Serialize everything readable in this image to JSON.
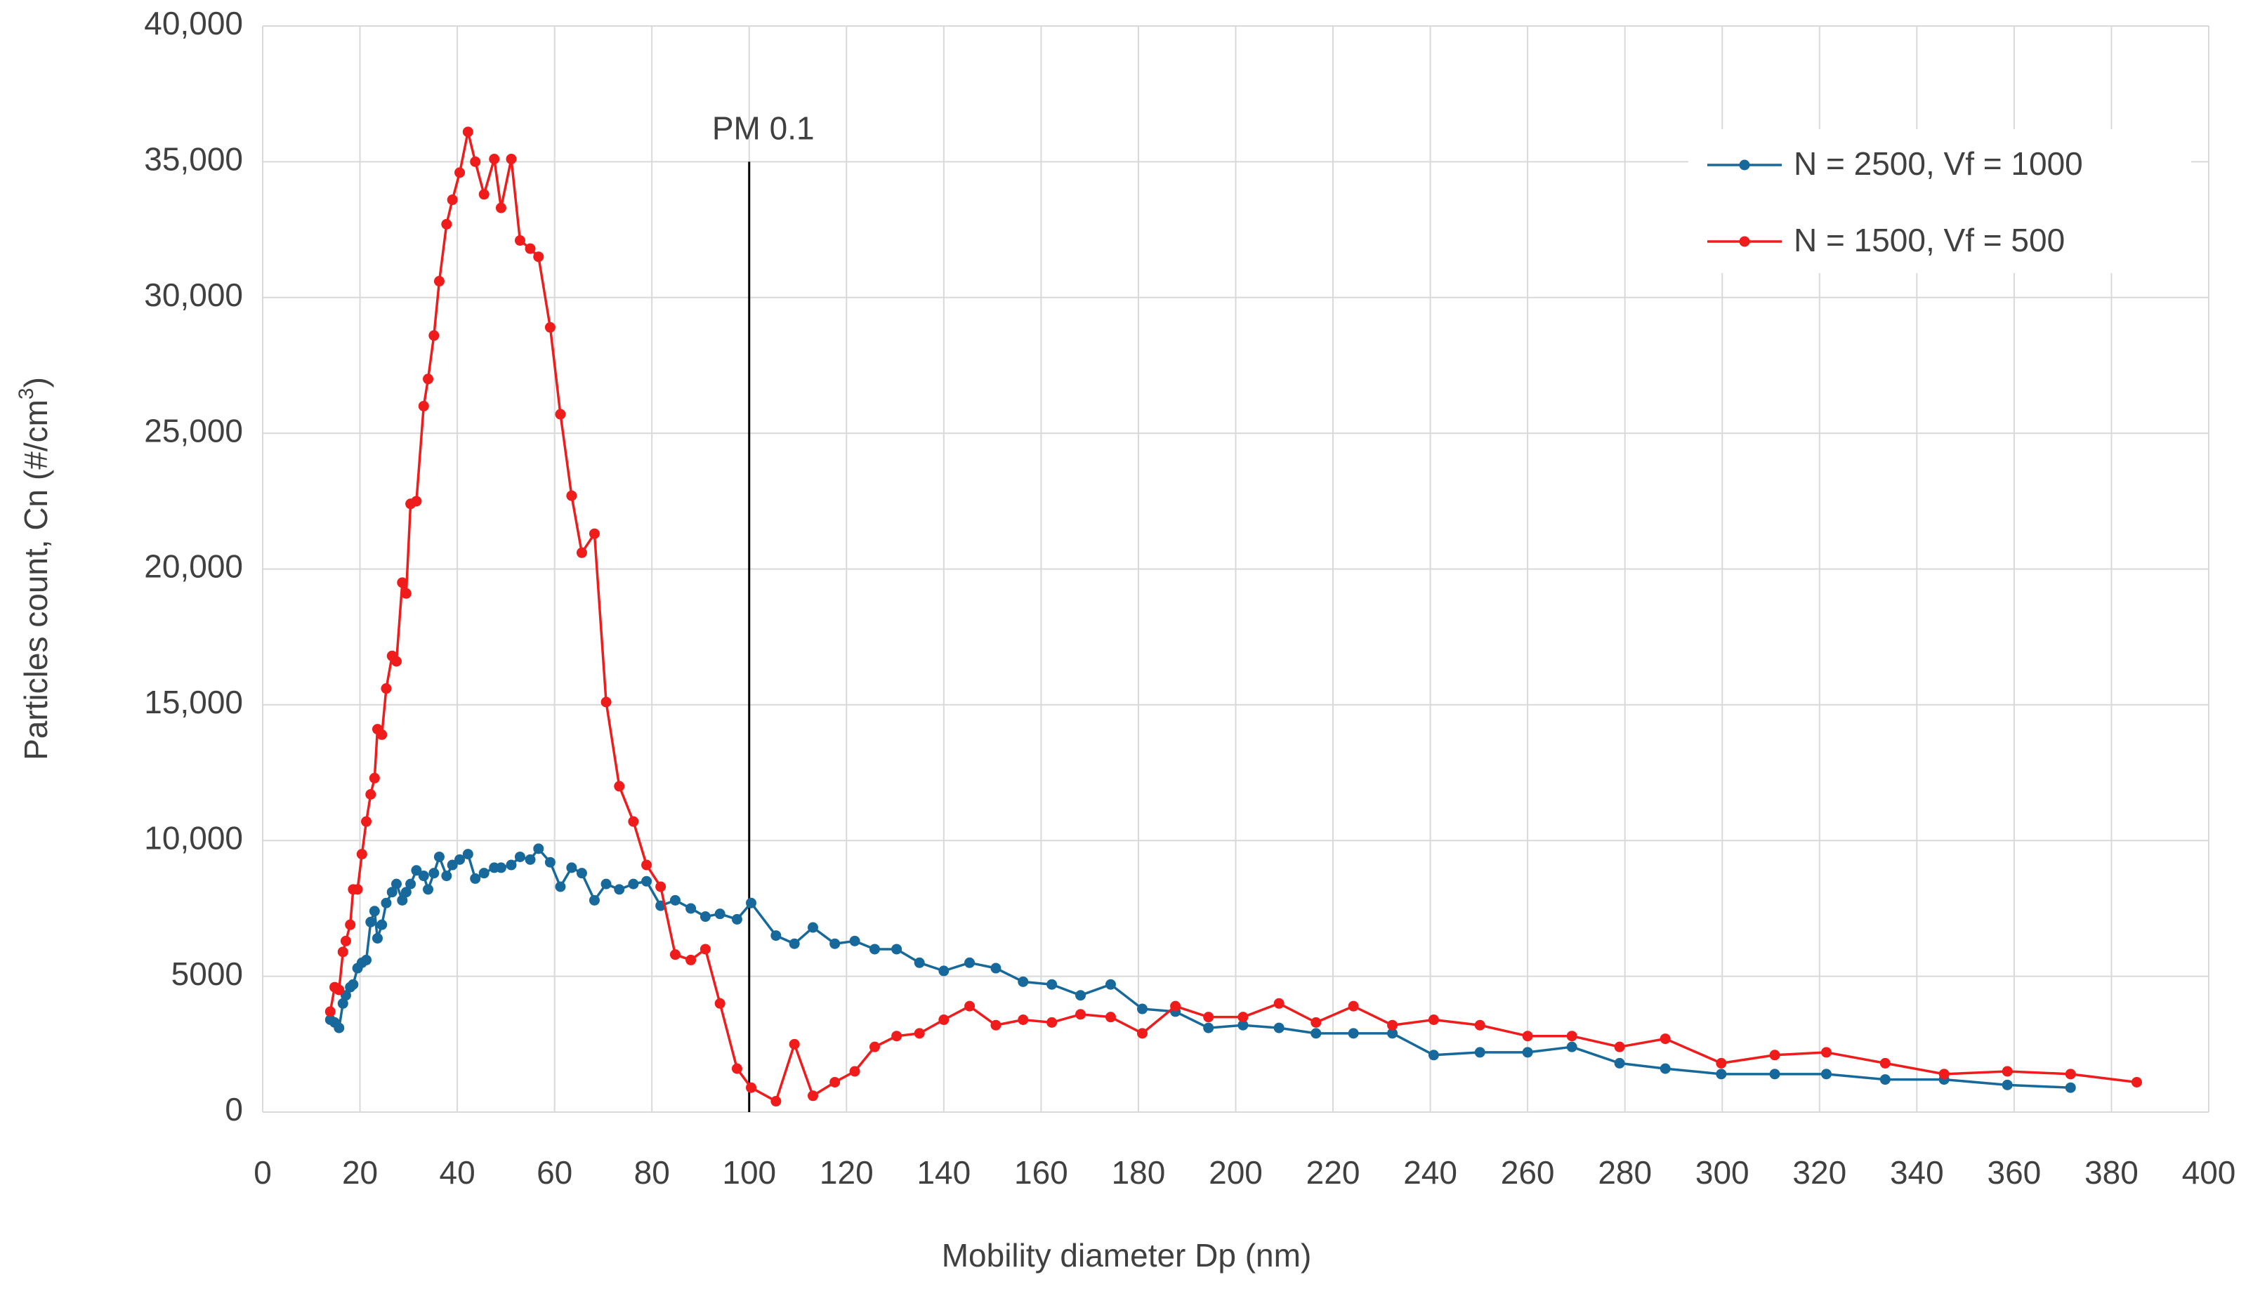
{
  "chart_data": {
    "type": "line",
    "x_label": "Mobility diameter Dp (nm)",
    "y_label_parts": [
      "Particles count, Cn (#/cm",
      "3",
      ")"
    ],
    "xlim": [
      0,
      400
    ],
    "xticks": [
      0,
      20,
      40,
      60,
      80,
      100,
      120,
      140,
      160,
      180,
      200,
      220,
      240,
      260,
      280,
      300,
      320,
      340,
      360,
      380,
      400
    ],
    "ylim": [
      0,
      40000
    ],
    "yticks": [
      0,
      5000,
      {
        "value": 10000,
        "label": "10,000"
      },
      {
        "value": 15000,
        "label": "15,000"
      },
      {
        "value": 20000,
        "label": "20,000"
      },
      {
        "value": 25000,
        "label": "25,000"
      },
      {
        "value": 30000,
        "label": "30,000"
      },
      {
        "value": 35000,
        "label": "35,000"
      },
      {
        "value": 40000,
        "label": "40,000"
      }
    ],
    "grid": true,
    "legend": "upper right",
    "annotations": [
      {
        "text": "PM 0.1",
        "x": 100,
        "y_top": 35000
      }
    ],
    "series": [
      {
        "name": "N = 2500, Vf = 1000",
        "color": "#16699a",
        "x": [
          13.9,
          14.8,
          15.7,
          16.5,
          17.1,
          18,
          18.6,
          19.5,
          20.4,
          21.3,
          22.2,
          23,
          23.6,
          24.5,
          25.4,
          26.6,
          27.5,
          28.7,
          29.5,
          30.4,
          31.6,
          33.1,
          34,
          35.2,
          36.3,
          37.8,
          39,
          40.5,
          42.2,
          43.7,
          45.5,
          47.6,
          49,
          51.1,
          52.9,
          55,
          56.7,
          59.1,
          61.2,
          63.5,
          65.6,
          68.2,
          70.6,
          73.3,
          76.2,
          78.9,
          81.8,
          84.8,
          88,
          91,
          94,
          97.5,
          100.4,
          105.5,
          109.3,
          113.1,
          117.6,
          121.7,
          125.8,
          130.3,
          135,
          140,
          145.3,
          150.7,
          156.3,
          162.2,
          168.1,
          174.3,
          180.8,
          187.6,
          194.4,
          201.5,
          208.9,
          216.5,
          224.2,
          232.2,
          240.7,
          250.2,
          260,
          269.1,
          278.9,
          288.3,
          299.8,
          310.8,
          321.4,
          333.5,
          345.6,
          358.6,
          371.6
        ],
        "values": [
          3400,
          3300,
          3100,
          4000,
          4300,
          4600,
          4700,
          5300,
          5500,
          5600,
          7000,
          7400,
          6400,
          6900,
          7700,
          8100,
          8400,
          7800,
          8100,
          8400,
          8900,
          8700,
          8200,
          8800,
          9400,
          8700,
          9100,
          9300,
          9500,
          8600,
          8800,
          9000,
          9000,
          9100,
          9400,
          9300,
          9700,
          9200,
          8300,
          9000,
          8800,
          7800,
          8400,
          8200,
          8400,
          8500,
          7600,
          7800,
          7500,
          7200,
          7300,
          7100,
          7700,
          6500,
          6200,
          6800,
          6200,
          6300,
          6000,
          6000,
          5500,
          5200,
          5500,
          5300,
          4800,
          4700,
          4300,
          4700,
          3800,
          3700,
          3100,
          3200,
          3100,
          2900,
          2900,
          2900,
          2100,
          2200,
          2200,
          2400,
          1800,
          1600,
          1400,
          1400,
          1400,
          1200,
          1200,
          1000,
          900
        ]
      },
      {
        "name": "N = 1500, Vf = 500",
        "color": "#f01c1c",
        "x": [
          13.9,
          14.8,
          15.7,
          16.5,
          17.1,
          18,
          18.6,
          19.5,
          20.4,
          21.3,
          22.2,
          23,
          23.6,
          24.5,
          25.4,
          26.6,
          27.5,
          28.7,
          29.5,
          30.4,
          31.6,
          33.1,
          34,
          35.2,
          36.3,
          37.8,
          39,
          40.5,
          42.2,
          43.7,
          45.5,
          47.6,
          49,
          51.1,
          52.9,
          55,
          56.7,
          59.1,
          61.2,
          63.5,
          65.6,
          68.2,
          70.6,
          73.3,
          76.2,
          78.9,
          81.8,
          84.8,
          88,
          91,
          94,
          97.5,
          100.4,
          105.5,
          109.3,
          113.1,
          117.6,
          121.7,
          125.8,
          130.3,
          135,
          140,
          145.3,
          150.7,
          156.3,
          162.2,
          168.1,
          174.3,
          180.8,
          187.6,
          194.4,
          201.5,
          208.9,
          216.5,
          224.2,
          232.2,
          240.7,
          250.2,
          260,
          269.1,
          278.9,
          288.3,
          299.8,
          310.8,
          321.4,
          333.5,
          345.6,
          358.6,
          371.6,
          385.2
        ],
        "values": [
          3700,
          4600,
          4500,
          5900,
          6300,
          6900,
          8200,
          8200,
          9500,
          10700,
          11700,
          12300,
          14100,
          13900,
          15600,
          16800,
          16600,
          19500,
          19100,
          22400,
          22500,
          26000,
          27000,
          28600,
          30600,
          32700,
          33600,
          34600,
          36100,
          35000,
          33800,
          35100,
          33300,
          35100,
          32100,
          31800,
          31500,
          28900,
          25700,
          22700,
          20600,
          21300,
          15100,
          12000,
          10700,
          9100,
          8300,
          5800,
          5600,
          6000,
          4000,
          1600,
          900,
          400,
          2500,
          600,
          1100,
          1500,
          2400,
          2800,
          2900,
          3400,
          3900,
          3200,
          3400,
          3300,
          3600,
          3500,
          2900,
          3900,
          3500,
          3500,
          4000,
          3300,
          3900,
          3200,
          3400,
          3200,
          2800,
          2800,
          2400,
          2700,
          1800,
          2100,
          2200,
          1800,
          1400,
          1500,
          1400,
          1100
        ]
      }
    ]
  }
}
